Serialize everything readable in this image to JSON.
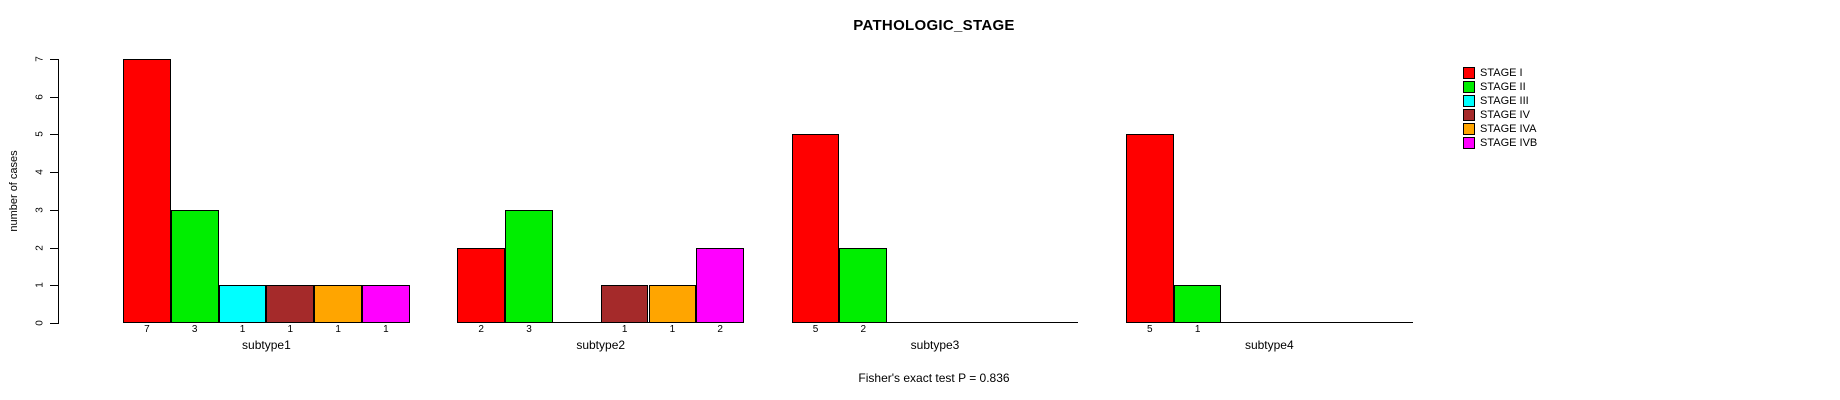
{
  "chart_data": {
    "type": "bar",
    "title": "PATHOLOGIC_STAGE",
    "ylabel": "number of cases",
    "xlabel": "",
    "ylim": [
      0,
      7
    ],
    "yticks": [
      0,
      1,
      2,
      3,
      4,
      5,
      6,
      7
    ],
    "grid": false,
    "legend_position": "top-right",
    "categories": [
      "subtype1",
      "subtype2",
      "subtype3",
      "subtype4"
    ],
    "series": [
      {
        "name": "STAGE I",
        "color": "#FF0000",
        "values": [
          7,
          2,
          5,
          5
        ]
      },
      {
        "name": "STAGE II",
        "color": "#00EE00",
        "values": [
          3,
          3,
          2,
          1
        ]
      },
      {
        "name": "STAGE III",
        "color": "#00FFFF",
        "values": [
          1,
          0,
          0,
          0
        ]
      },
      {
        "name": "STAGE IV",
        "color": "#A52A2A",
        "values": [
          1,
          1,
          0,
          0
        ]
      },
      {
        "name": "STAGE IVA",
        "color": "#FFA500",
        "values": [
          1,
          1,
          0,
          0
        ]
      },
      {
        "name": "STAGE IVB",
        "color": "#FF00FF",
        "values": [
          1,
          2,
          0,
          0
        ]
      }
    ],
    "bar_value_labels_shown": true,
    "annotation": "Fisher's exact test P = 0.836"
  }
}
